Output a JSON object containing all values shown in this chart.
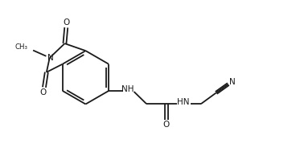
{
  "bg_color": "#ffffff",
  "line_color": "#1a1a1a",
  "text_color": "#1a1a1a",
  "linewidth": 1.3,
  "figsize": [
    3.68,
    1.89
  ],
  "dpi": 100,
  "xlim": [
    0.0,
    10.0
  ],
  "ylim": [
    0.0,
    5.2
  ]
}
